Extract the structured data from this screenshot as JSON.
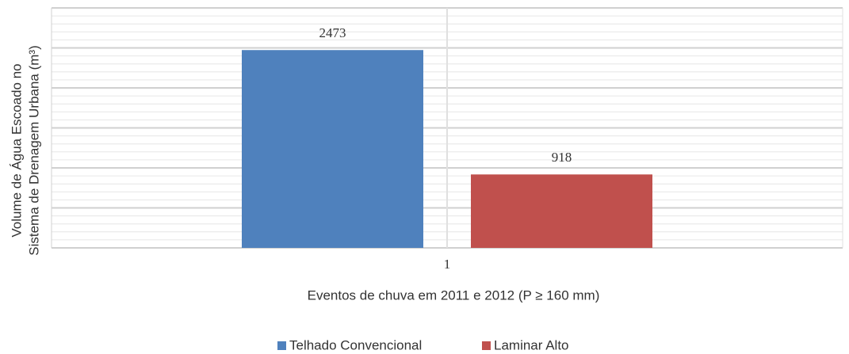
{
  "chart_data": {
    "type": "bar",
    "categories": [
      "1"
    ],
    "series": [
      {
        "name": "Telhado Convencional",
        "color": "#4f81bd",
        "values": [
          2473
        ]
      },
      {
        "name": "Laminar Alto",
        "color": "#c0504d",
        "values": [
          918
        ]
      }
    ],
    "ylim": [
      0,
      3000
    ],
    "yticks": [
      0,
      500,
      1000,
      1500,
      2000,
      2500,
      3000
    ],
    "grid": true,
    "xlabel": "Eventos de chuva em 2011 e 2012 (P ≥ 160 mm)",
    "ylabel": [
      "Volume de Água Escoado no",
      "Sistema de Drenagem Urbana (m³)"
    ],
    "legend": "bottom"
  }
}
